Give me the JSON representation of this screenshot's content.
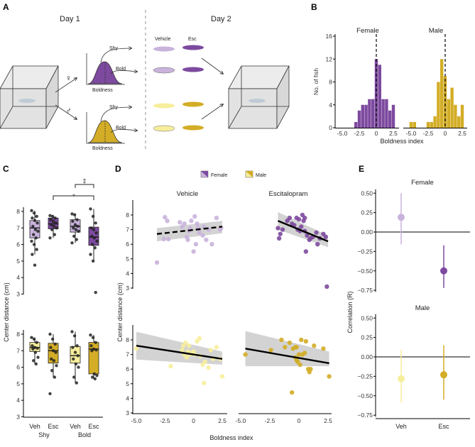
{
  "panels": {
    "a": "A",
    "b": "B",
    "c": "C",
    "d": "D",
    "e": "E"
  },
  "colors": {
    "female_vehicle": "#c9b3dc",
    "female_esc": "#7d4a9f",
    "male_vehicle": "#f7ee9c",
    "male_esc": "#d3ad26",
    "ci_band": "#c8c8c8"
  },
  "schematic": {
    "day1": "Day 1",
    "day2": "Day 2",
    "shy": "Shy",
    "bold": "Bold",
    "boldness": "Boldness",
    "vehicle": "Vehicle",
    "esc": "Esc",
    "female_symbol": "♀",
    "male_symbol": "♂",
    "icons": [
      "tank-icon",
      "fish-icon",
      "distribution-curve-icon",
      "arrow-icon"
    ]
  },
  "chart_data": [
    {
      "id": "B",
      "type": "bar",
      "ylabel": "No. of fish",
      "xlabel": "Boldness index",
      "ylim": [
        0,
        16
      ],
      "yticks": [
        "0",
        "4",
        "8",
        "12",
        "16"
      ],
      "xticks": [
        "-5.0",
        "-2.5",
        "0",
        "2.5"
      ],
      "reference_line": "dashed vertical at 0",
      "facets": [
        {
          "title": "Female",
          "color": "#7d4a9f",
          "bin_centers": [
            -3,
            -2.5,
            -2,
            -1.5,
            -1,
            -0.5,
            0,
            0.5,
            1,
            1.5,
            2,
            2.5
          ],
          "counts": [
            1,
            3,
            4,
            4,
            5,
            5,
            12,
            11,
            5,
            5,
            3,
            4
          ]
        },
        {
          "title": "Male",
          "color": "#d3ad26",
          "bin_centers": [
            -5,
            -4.5,
            -2.5,
            -2,
            -1.5,
            -1,
            -0.5,
            0,
            0.5,
            1,
            1.5,
            2,
            2.5
          ],
          "counts": [
            1,
            1,
            1,
            1,
            2,
            8,
            12,
            9,
            5,
            7,
            4,
            2,
            4
          ]
        }
      ]
    },
    {
      "id": "C",
      "type": "box",
      "ylabel": "Center distance (cm)",
      "ylim": [
        3,
        8
      ],
      "yticks": [
        "3",
        "4",
        "5",
        "6",
        "7",
        "8"
      ],
      "categories": [
        "Veh",
        "Esc",
        "Veh",
        "Esc"
      ],
      "groups": [
        "Shy",
        "Bold"
      ],
      "significance": [
        {
          "symbol": "*",
          "from": "Shy Esc",
          "to": "Bold Esc"
        },
        {
          "symbol": "‡",
          "from": "Bold Veh",
          "to": "Bold Esc"
        }
      ],
      "rows": [
        {
          "sex": "Female",
          "boxes": [
            {
              "color": "#c9b3dc",
              "q1": 6.4,
              "median": 7.0,
              "q3": 7.45,
              "min": 5.4,
              "max": 8.05,
              "points": [
                8.05,
                7.9,
                7.7,
                7.6,
                7.45,
                7.3,
                7.1,
                6.9,
                6.8,
                6.6,
                6.4,
                6.2,
                6.0,
                5.7,
                5.4,
                4.75
              ]
            },
            {
              "color": "#7d4a9f",
              "q1": 6.95,
              "median": 7.25,
              "q3": 7.6,
              "min": 6.4,
              "max": 7.75,
              "points": [
                7.75,
                7.7,
                7.6,
                7.5,
                7.4,
                7.3,
                7.2,
                7.1,
                7.0,
                6.9,
                6.6,
                6.4
              ]
            },
            {
              "color": "#c9b3dc",
              "q1": 6.75,
              "median": 7.1,
              "q3": 7.5,
              "min": 6.1,
              "max": 7.85,
              "points": [
                7.85,
                7.8,
                7.5,
                7.4,
                7.2,
                7.1,
                7.0,
                6.9,
                6.8,
                6.5,
                6.3,
                6.1
              ]
            },
            {
              "color": "#7d4a9f",
              "q1": 5.95,
              "median": 6.45,
              "q3": 7.05,
              "min": 5.0,
              "max": 8.15,
              "points": [
                8.15,
                7.7,
                7.3,
                7.0,
                6.9,
                6.7,
                6.5,
                6.4,
                6.2,
                6.0,
                5.8,
                5.4,
                5.0,
                3.1
              ]
            }
          ]
        },
        {
          "sex": "Male",
          "boxes": [
            {
              "color": "#f7ee9c",
              "q1": 6.95,
              "median": 7.2,
              "q3": 7.5,
              "min": 6.2,
              "max": 7.8,
              "points": [
                7.8,
                7.7,
                7.5,
                7.3,
                7.2,
                7.15,
                7.1,
                6.9,
                6.6,
                6.4,
                6.2
              ]
            },
            {
              "color": "#d3ad26",
              "q1": 6.25,
              "median": 7.0,
              "q3": 7.45,
              "min": 5.4,
              "max": 8.0,
              "points": [
                8.0,
                7.7,
                7.4,
                7.2,
                7.0,
                6.9,
                6.5,
                6.4,
                6.1,
                5.8,
                5.4,
                4.4
              ]
            },
            {
              "color": "#f7ee9c",
              "q1": 6.25,
              "median": 6.7,
              "q3": 7.25,
              "min": 5.05,
              "max": 8.15,
              "points": [
                8.15,
                7.9,
                7.3,
                7.2,
                6.9,
                6.7,
                6.5,
                6.2,
                6.0,
                5.4,
                5.05
              ]
            },
            {
              "color": "#d3ad26",
              "q1": 5.6,
              "median": 7.1,
              "q3": 7.5,
              "min": 5.3,
              "max": 7.95,
              "points": [
                7.95,
                7.8,
                7.5,
                7.3,
                7.1,
                7.05,
                7.0,
                5.6,
                5.5,
                5.4,
                5.3
              ]
            }
          ]
        }
      ]
    },
    {
      "id": "D",
      "type": "scatter",
      "xlabel": "Boldness index",
      "ylabel": "Center distance (cm)",
      "xlim": [
        -5,
        2.7
      ],
      "ylim": [
        3,
        8.4
      ],
      "xticks": [
        "-5.0",
        "-2.5",
        "0",
        "2.5"
      ],
      "yticks": [
        "3",
        "4",
        "5",
        "6",
        "7",
        "8"
      ],
      "legend": [
        "Female",
        "Male"
      ],
      "column_titles": [
        "Vehicle",
        "Escitalopram"
      ],
      "facets": [
        {
          "color": "#c9b3dc",
          "line": {
            "x": [
              -3.2,
              2.5
            ],
            "y": [
              6.7,
              7.2
            ],
            "style": "dashed"
          },
          "ci": {
            "lo": [
              6.2,
              6.75
            ],
            "hi": [
              7.1,
              7.6
            ]
          },
          "x": [
            -3.2,
            -2.6,
            -2.5,
            -2.3,
            -2.2,
            -1.2,
            -1.0,
            -0.8,
            -0.6,
            -0.5,
            -0.3,
            -0.2,
            0,
            0.1,
            0.2,
            0.4,
            0.5,
            0.8,
            0.9,
            1.1,
            1.3,
            1.6,
            2.0,
            2.3,
            2.4,
            -0.4,
            0.3
          ],
          "y": [
            4.75,
            6.35,
            7.85,
            7.6,
            6.35,
            7.5,
            7.2,
            7.4,
            6.5,
            6.3,
            7.1,
            7.6,
            5.5,
            7.9,
            6.0,
            7.1,
            6.8,
            6.6,
            7.2,
            6.3,
            7.0,
            6.0,
            7.8,
            7.0,
            7.1,
            6.9,
            7.4
          ]
        },
        {
          "color": "#7d4a9f",
          "line": {
            "x": [
              -1.8,
              2.5
            ],
            "y": [
              7.6,
              6.2
            ],
            "style": "solid"
          },
          "ci": {
            "lo": [
              7.0,
              5.8
            ],
            "hi": [
              8.2,
              6.6
            ]
          },
          "x": [
            -1.8,
            -1.6,
            -1.4,
            -1.7,
            -1.0,
            -0.8,
            -0.6,
            -0.4,
            -0.2,
            0,
            0.1,
            0.2,
            0.3,
            0.4,
            0.5,
            0.6,
            0.7,
            0.9,
            1.0,
            1.2,
            1.5,
            1.6,
            1.8,
            2.1,
            2.4,
            2.3,
            0.5,
            -0.1
          ],
          "y": [
            7.1,
            6.7,
            7.0,
            6.4,
            7.6,
            7.8,
            7.4,
            7.3,
            7.8,
            7.7,
            6.9,
            7.2,
            8.0,
            7.6,
            7.8,
            5.5,
            6.6,
            6.3,
            6.4,
            6.5,
            6.8,
            6.0,
            6.4,
            6.7,
            3.1,
            6.5,
            6.9,
            7.0
          ]
        },
        {
          "color": "#f7ee9c",
          "line": {
            "x": [
              -5,
              2.5
            ],
            "y": [
              7.6,
              6.7
            ],
            "style": "solid"
          },
          "ci": {
            "lo": [
              6.65,
              6.3
            ],
            "hi": [
              8.55,
              7.2
            ]
          },
          "x": [
            -5,
            -2.0,
            -1.0,
            -0.9,
            -0.8,
            -0.7,
            -0.6,
            -0.5,
            -0.4,
            -0.2,
            0,
            0.1,
            0.3,
            0.5,
            0.6,
            0.8,
            0.9,
            1.0,
            1.3,
            1.5,
            1.7,
            2.0,
            2.3,
            2.5,
            -0.3
          ],
          "y": [
            7.4,
            6.2,
            7.3,
            7.6,
            7.0,
            7.8,
            6.8,
            7.2,
            7.6,
            7.1,
            7.2,
            7.0,
            7.9,
            8.1,
            6.9,
            6.3,
            5.05,
            6.5,
            6.1,
            7.3,
            6.7,
            7.5,
            6.7,
            5.5,
            7.0
          ]
        },
        {
          "color": "#d3ad26",
          "line": {
            "x": [
              -4.6,
              2.6
            ],
            "y": [
              7.4,
              6.4
            ],
            "style": "solid"
          },
          "ci": {
            "lo": [
              6.2,
              6.2
            ],
            "hi": [
              8.6,
              7.2
            ]
          },
          "x": [
            -4.6,
            -2.4,
            -1.5,
            -1.2,
            -0.8,
            -0.6,
            -0.5,
            -0.3,
            -0.2,
            -0.1,
            0,
            0.1,
            0.2,
            0.3,
            0.5,
            0.6,
            0.8,
            0.9,
            1.0,
            1.3,
            2.1,
            2.6,
            -0.3,
            -0.2
          ],
          "y": [
            7.0,
            7.3,
            8.0,
            7.5,
            7.8,
            4.4,
            7.4,
            7.5,
            7.5,
            6.5,
            7.0,
            6.3,
            8.0,
            7.0,
            7.1,
            7.9,
            6.0,
            5.8,
            6.0,
            7.6,
            7.4,
            5.5,
            6.8,
            6.6
          ]
        }
      ]
    },
    {
      "id": "E",
      "type": "pointrange",
      "ylabel": "Correlation (R)",
      "ylim": [
        -0.75,
        0.5
      ],
      "yticks": [
        "0.50",
        "0.25",
        "0.00",
        "−0.25",
        "−0.50",
        "−0.75"
      ],
      "categories": [
        "Veh",
        "Esc"
      ],
      "facets": [
        {
          "title": "Female",
          "points": [
            {
              "color": "#c9b3dc",
              "r": 0.19,
              "lo": -0.16,
              "hi": 0.5
            },
            {
              "color": "#7d4a9f",
              "r": -0.5,
              "lo": -0.72,
              "hi": -0.17
            }
          ]
        },
        {
          "title": "Male",
          "points": [
            {
              "color": "#f7ee9c",
              "r": -0.28,
              "lo": -0.59,
              "hi": 0.09
            },
            {
              "color": "#d3ad26",
              "r": -0.23,
              "lo": -0.55,
              "hi": 0.15
            }
          ]
        }
      ]
    }
  ]
}
